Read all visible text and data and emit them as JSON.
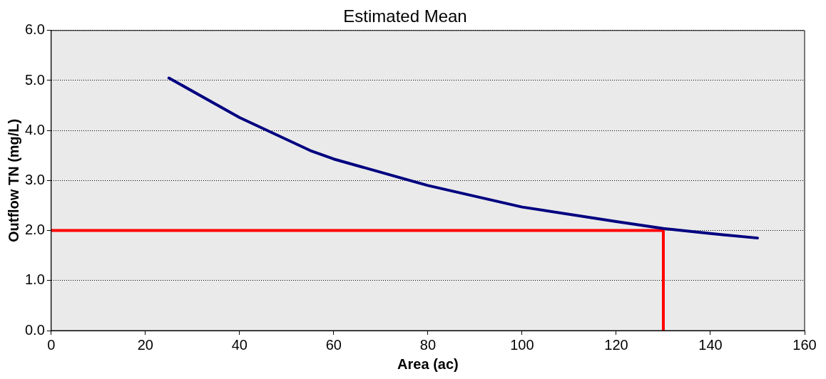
{
  "chart_data": {
    "type": "line",
    "title": "Estimated Mean",
    "xlabel": "Area (ac)",
    "ylabel": "Outflow TN (mg/L)",
    "xlim": [
      0,
      160
    ],
    "xticks": [
      0,
      20,
      40,
      60,
      80,
      100,
      120,
      140,
      160
    ],
    "ylim": [
      0,
      6
    ],
    "yticks": [
      {
        "value": 0,
        "label": "0.0"
      },
      {
        "value": 1,
        "label": "1.0"
      },
      {
        "value": 2,
        "label": "2.0"
      },
      {
        "value": 3,
        "label": "3.0"
      },
      {
        "value": 4,
        "label": "4.0"
      },
      {
        "value": 5,
        "label": "5.0"
      },
      {
        "value": 6,
        "label": "6.0"
      }
    ],
    "grid": "y",
    "legend": false,
    "marker": "none",
    "series": [
      {
        "color": "#000080",
        "x": [
          25,
          40,
          55,
          60,
          80,
          100,
          120,
          130,
          140,
          150
        ],
        "values": [
          5.05,
          4.26,
          3.6,
          3.43,
          2.9,
          2.47,
          2.18,
          2.04,
          1.94,
          1.85
        ]
      },
      {
        "color": "#ff0000",
        "x": [
          0,
          130,
          130
        ],
        "values": [
          2,
          2,
          0
        ]
      }
    ]
  }
}
